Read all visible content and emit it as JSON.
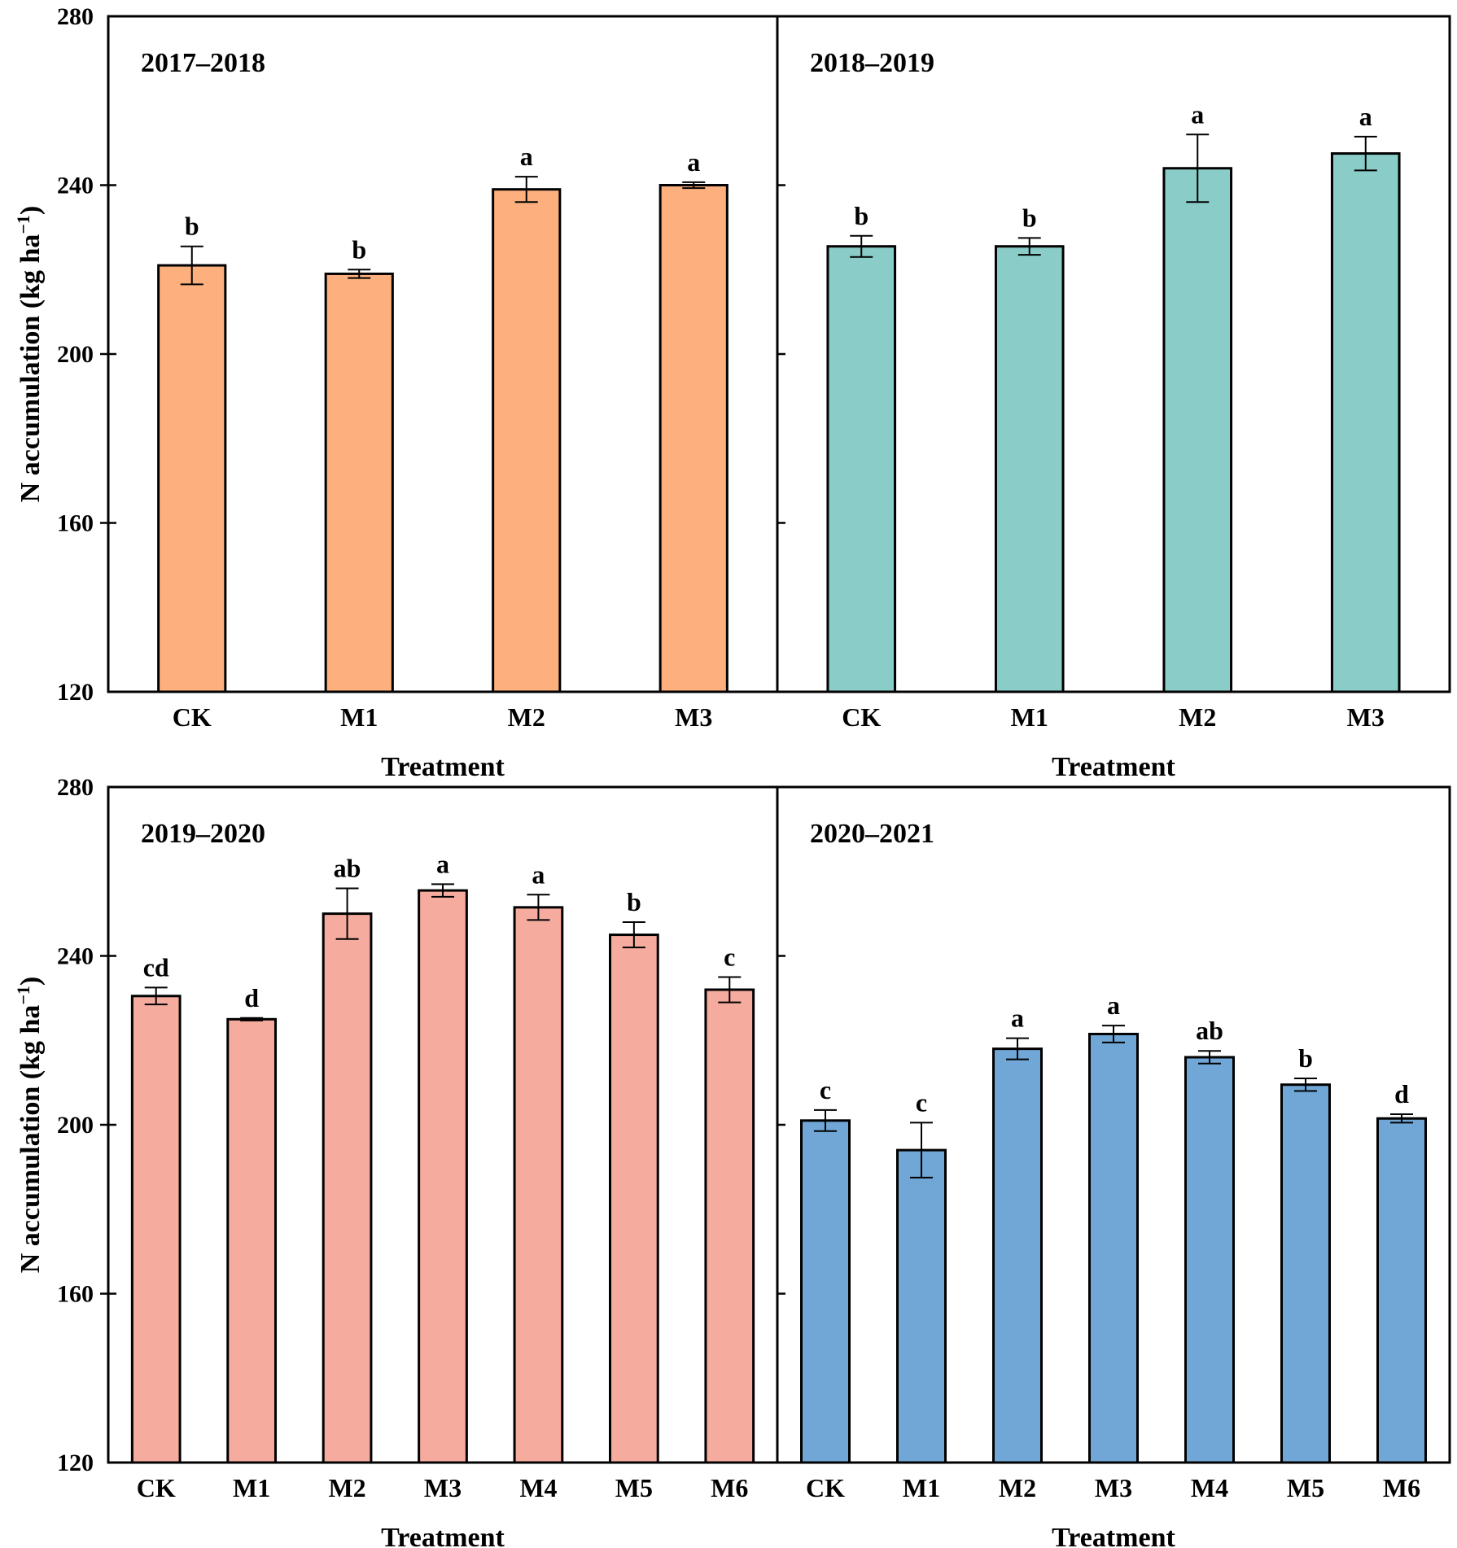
{
  "chart_data": [
    {
      "type": "bar",
      "title": "2017–2018",
      "xlabel": "Treatment",
      "ylabel": "N accumulation (kg ha⁻¹)",
      "ylabel_main": "N accumulation (kg ha",
      "ylabel_sup": "−1",
      "ylabel_close": ")",
      "ylim": [
        120,
        280
      ],
      "yticks": [
        120,
        160,
        200,
        240,
        280
      ],
      "categories": [
        "CK",
        "M1",
        "M2",
        "M3"
      ],
      "values": [
        221,
        219,
        239,
        240
      ],
      "errors": [
        4.5,
        1.0,
        3.0,
        0.7
      ],
      "labels": [
        "b",
        "b",
        "a",
        "a"
      ],
      "color": "#FDB07E"
    },
    {
      "type": "bar",
      "title": "2018–2019",
      "xlabel": "Treatment",
      "ylim": [
        120,
        280
      ],
      "yticks": [
        120,
        160,
        200,
        240,
        280
      ],
      "categories": [
        "CK",
        "M1",
        "M2",
        "M3"
      ],
      "values": [
        225.5,
        225.5,
        244,
        247.5
      ],
      "errors": [
        2.5,
        2.0,
        8.0,
        4.0
      ],
      "labels": [
        "b",
        "b",
        "a",
        "a"
      ],
      "color": "#8ACDC8"
    },
    {
      "type": "bar",
      "title": "2019–2020",
      "xlabel": "Treatment",
      "ylabel": "N accumulation (kg ha⁻¹)",
      "ylabel_main": "N accumulation (kg ha",
      "ylabel_sup": "−1",
      "ylabel_close": ")",
      "ylim": [
        120,
        280
      ],
      "yticks": [
        120,
        160,
        200,
        240,
        280
      ],
      "categories": [
        "CK",
        "M1",
        "M2",
        "M3",
        "M4",
        "M5",
        "M6"
      ],
      "values": [
        230.5,
        225,
        250,
        255.5,
        251.5,
        245,
        232
      ],
      "errors": [
        2.0,
        0.3,
        6.0,
        1.5,
        3.0,
        3.0,
        3.0
      ],
      "labels": [
        "cd",
        "d",
        "ab",
        "a",
        "a",
        "b",
        "c"
      ],
      "color": "#F6AB9F"
    },
    {
      "type": "bar",
      "title": "2020–2021",
      "xlabel": "Treatment",
      "ylim": [
        120,
        280
      ],
      "yticks": [
        120,
        160,
        200,
        240,
        280
      ],
      "categories": [
        "CK",
        "M1",
        "M2",
        "M3",
        "M4",
        "M5",
        "M6"
      ],
      "values": [
        201,
        194,
        218,
        221.5,
        216,
        209.5,
        201.5
      ],
      "errors": [
        2.5,
        6.5,
        2.5,
        2.0,
        1.5,
        1.5,
        1.0
      ],
      "labels": [
        "c",
        "c",
        "a",
        "a",
        "ab",
        "b",
        "d"
      ],
      "color": "#70A7D6"
    }
  ]
}
